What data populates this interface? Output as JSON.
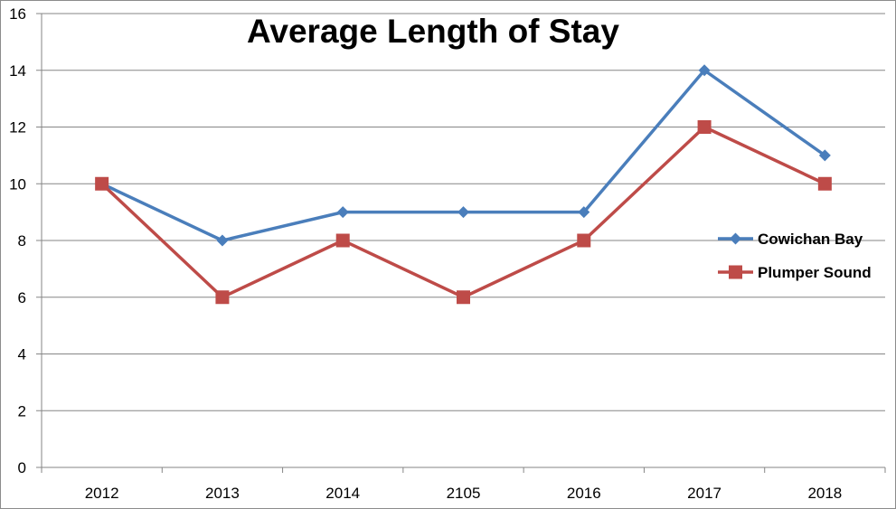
{
  "chart_data": {
    "type": "line",
    "title": "Average Length of Stay",
    "xlabel": "",
    "ylabel": "",
    "categories": [
      "2012",
      "2013",
      "2014",
      "2105",
      "2016",
      "2017",
      "2018"
    ],
    "ylim": [
      0,
      16
    ],
    "yticks": [
      0,
      2,
      4,
      6,
      8,
      10,
      12,
      14,
      16
    ],
    "grid": true,
    "legend_position": "right",
    "series": [
      {
        "name": "Cowichan Bay",
        "color": "#4a7ebb",
        "marker": "diamond",
        "values": [
          10,
          8,
          9,
          9,
          9,
          14,
          11
        ]
      },
      {
        "name": "Plumper Sound",
        "color": "#be4b48",
        "marker": "square",
        "values": [
          10,
          6,
          8,
          6,
          8,
          12,
          10
        ]
      }
    ]
  }
}
